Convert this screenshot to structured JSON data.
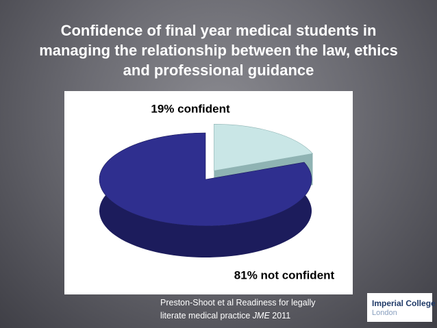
{
  "chart_data": {
    "type": "pie",
    "title": "Confidence of final year medical students in\nmanaging the relationship between the law, ethics\nand professional guidance",
    "values": [
      19,
      81
    ],
    "value_labels": [
      "19% confident",
      "81% not confident"
    ],
    "colors": [
      "#c9e6e6",
      "#2f2f8f"
    ],
    "side_colors": [
      "#8fb3b3",
      "#1c1c5c"
    ],
    "exploded": [
      true,
      false
    ]
  },
  "citation": {
    "line1": "Preston-Shoot et al Readiness for legally",
    "line2": "literate medical practice",
    "journal": "JME",
    "year": "2011"
  },
  "logo": {
    "line1": "Imperial College",
    "line2": "London"
  }
}
